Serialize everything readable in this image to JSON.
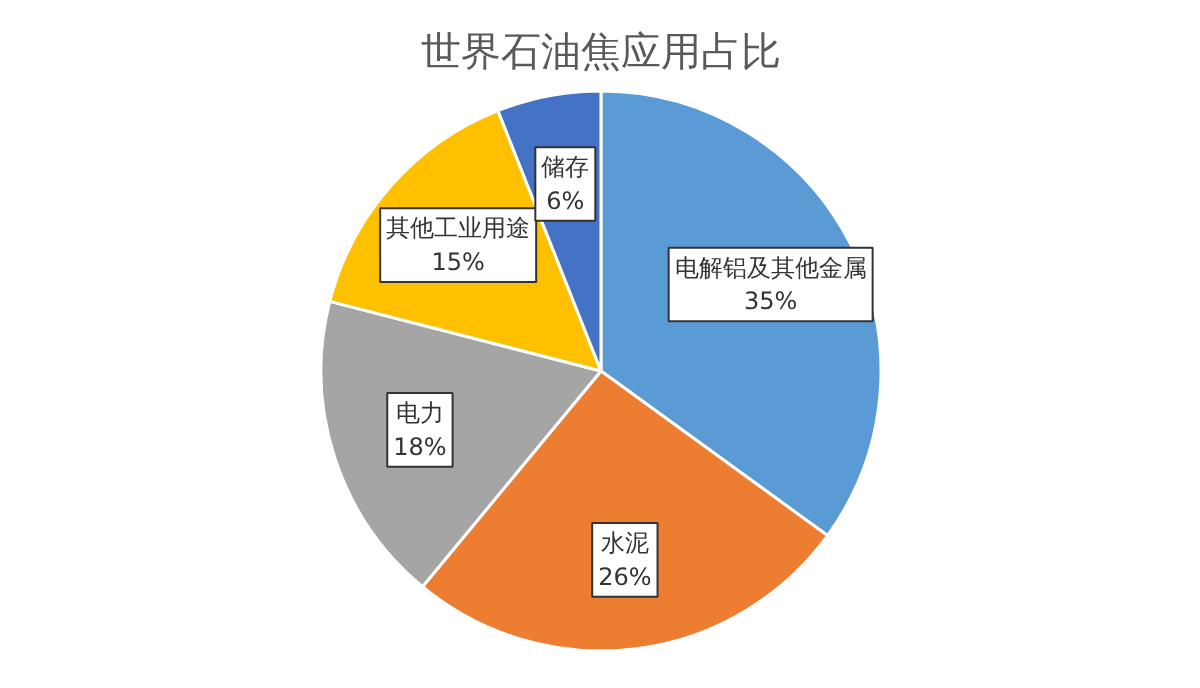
{
  "chart_data": {
    "type": "pie",
    "title": "世界石油焦应用占比",
    "categories": [
      "电解铝及其他金属",
      "水泥",
      "电力",
      "其他工业用途",
      "储存"
    ],
    "values": [
      35,
      26,
      18,
      15,
      6
    ],
    "colors": [
      "#5b9bd5",
      "#ed7d31",
      "#a5a5a5",
      "#ffc000",
      "#4472c4"
    ],
    "value_labels": [
      "35%",
      "26%",
      "18%",
      "15%",
      "6%"
    ]
  }
}
